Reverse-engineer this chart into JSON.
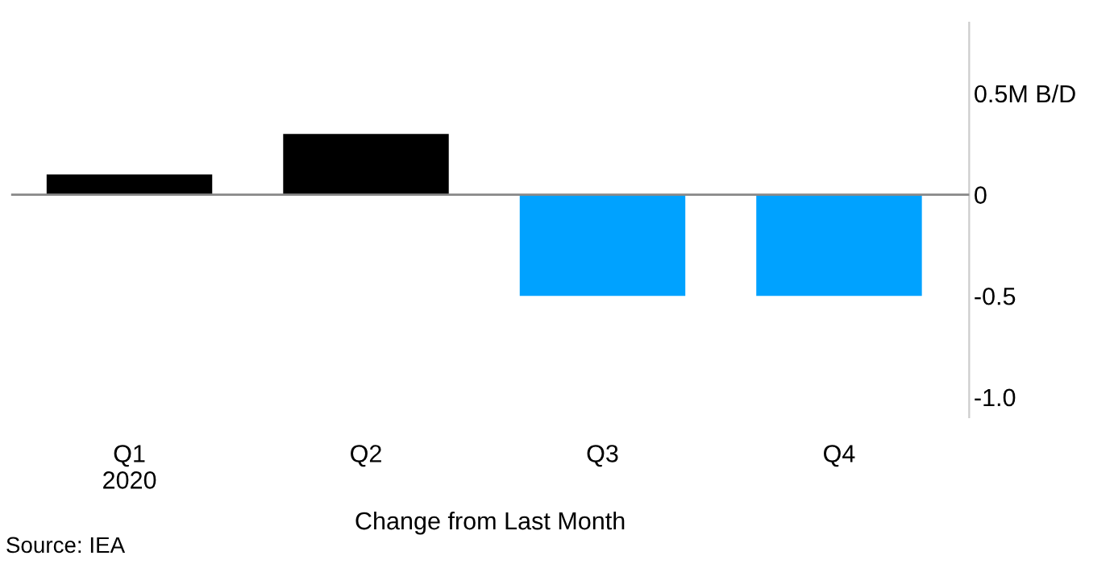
{
  "chart_data": {
    "type": "bar",
    "categories": [
      "Q1\n2020",
      "Q2",
      "Q3",
      "Q4"
    ],
    "values": [
      0.1,
      0.3,
      -0.5,
      -0.5
    ],
    "colors": [
      "#000000",
      "#000000",
      "#00a2ff",
      "#00a2ff"
    ],
    "ylim": [
      -1.1,
      0.85
    ],
    "yticks": [
      {
        "value": 0.5,
        "label": "0.5M B/D"
      },
      0,
      -0.5,
      {
        "value": -1,
        "label": "-1.0"
      }
    ],
    "xlabel": "Change from Last Month",
    "ref_lines": [
      {
        "axis": "y",
        "value": 0,
        "color": "#888888"
      }
    ],
    "annotations": [
      "Source: IEA"
    ],
    "grid": false,
    "legend": false
  }
}
